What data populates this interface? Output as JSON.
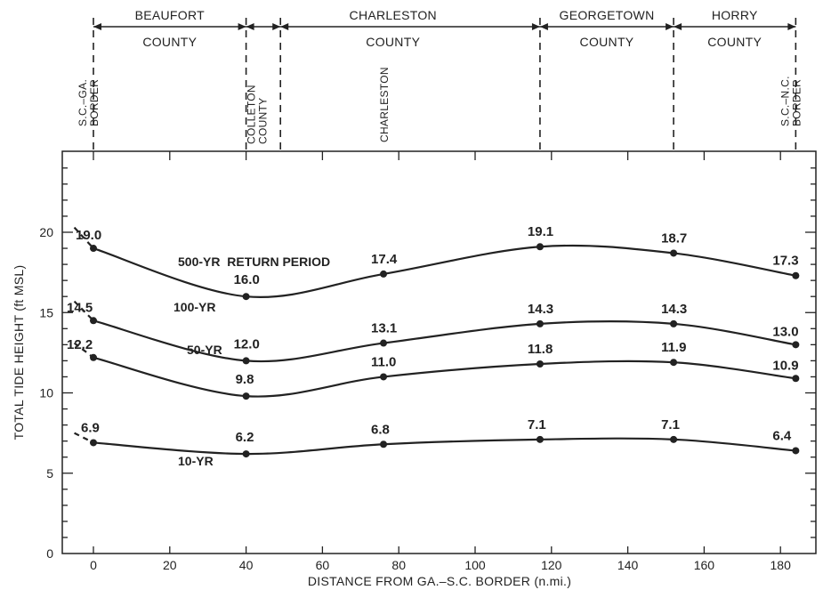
{
  "chart_data": {
    "type": "line",
    "xlabel": "DISTANCE FROM GA.–S.C. BORDER (n.mi.)",
    "ylabel": "TOTAL TIDE HEIGHT (ft MSL)",
    "xlim": [
      -8,
      186
    ],
    "ylim": [
      0,
      25
    ],
    "x_ticks": [
      0,
      20,
      40,
      60,
      80,
      100,
      120,
      140,
      160,
      180
    ],
    "y_ticks": [
      0,
      5,
      10,
      15,
      20
    ],
    "grid": false,
    "x": [
      0,
      40,
      76,
      117,
      152,
      184
    ],
    "series": [
      {
        "name": "500-YR  RETURN PERIOD",
        "values": [
          19.0,
          16.0,
          17.4,
          19.1,
          18.7,
          17.3
        ],
        "labels": [
          "19.0",
          "16.0",
          "17.4",
          "19.1",
          "18.7",
          "17.3"
        ]
      },
      {
        "name": "100-YR",
        "values": [
          14.5,
          12.0,
          13.1,
          14.3,
          14.3,
          13.0
        ],
        "labels": [
          "14.5",
          "12.0",
          "13.1",
          "14.3",
          "14.3",
          "13.0"
        ]
      },
      {
        "name": "50-YR",
        "values": [
          12.2,
          9.8,
          11.0,
          11.8,
          11.9,
          10.9
        ],
        "labels": [
          "12.2",
          "9.8",
          "11.0",
          "11.8",
          "11.9",
          "10.9"
        ]
      },
      {
        "name": "10-YR",
        "values": [
          6.9,
          6.2,
          6.8,
          7.1,
          7.1,
          6.4
        ],
        "labels": [
          "6.9",
          "6.2",
          "6.8",
          "7.1",
          "7.1",
          "6.4"
        ]
      }
    ],
    "counties": [
      {
        "name": "BEAUFORT",
        "suffix": "COUNTY",
        "from": 0,
        "to": 40
      },
      {
        "name": "CHARLESTON",
        "suffix": "COUNTY",
        "from": 40,
        "to": 117
      },
      {
        "name": "GEORGETOWN",
        "suffix": "COUNTY",
        "from": 117,
        "to": 152
      },
      {
        "name": "HORRY",
        "suffix": "COUNTY",
        "from": 152,
        "to": 184
      }
    ],
    "places": [
      {
        "text": "S.C.–GA. BORDER",
        "x": 0
      },
      {
        "text": "COLLETON COUNTY",
        "x": 40
      },
      {
        "text": "CHARLESTON",
        "x": 76
      },
      {
        "text": "S.C.–N.C. BORDER",
        "x": 184
      }
    ]
  }
}
